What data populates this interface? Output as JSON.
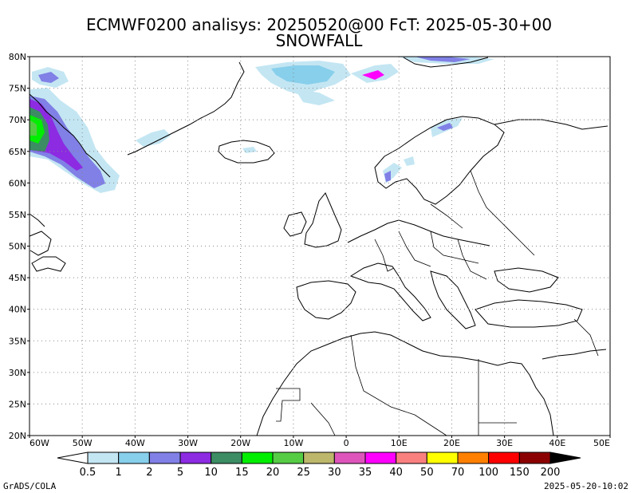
{
  "header": {
    "title_line1": "ECMWF0200 analisys: 20250520@00 FcT: 2025-05-30+00",
    "title_line2": "SNOWFALL"
  },
  "axes": {
    "lat_labels": [
      "20N",
      "25N",
      "30N",
      "35N",
      "40N",
      "45N",
      "50N",
      "55N",
      "60N",
      "65N",
      "70N",
      "75N",
      "80N"
    ],
    "lon_labels": [
      "60W",
      "50W",
      "40W",
      "30W",
      "20W",
      "10W",
      "0",
      "10E",
      "20E",
      "30E",
      "40E",
      "50E"
    ],
    "lat_range": [
      20,
      80
    ],
    "lon_range": [
      -60,
      50
    ],
    "grid": "dotted"
  },
  "colorbar": {
    "labels": [
      "0.5",
      "1",
      "2",
      "5",
      "10",
      "15",
      "20",
      "25",
      "30",
      "35",
      "40",
      "50",
      "70",
      "100",
      "150",
      "200"
    ],
    "colors": [
      "#c4e6f3",
      "#87cfeb",
      "#8080e6",
      "#8c2be2",
      "#3c8c64",
      "#00ee00",
      "#55cc44",
      "#bdb76b",
      "#dd55bb",
      "#ff00ff",
      "#fa8080",
      "#ffff00",
      "#ff8000",
      "#ff0000",
      "#8b0000"
    ],
    "under_color": "#ffffff",
    "over_color": "#000000"
  },
  "footer": {
    "left": "GrADS/COLA",
    "right": "2025-05-20-10:02"
  }
}
